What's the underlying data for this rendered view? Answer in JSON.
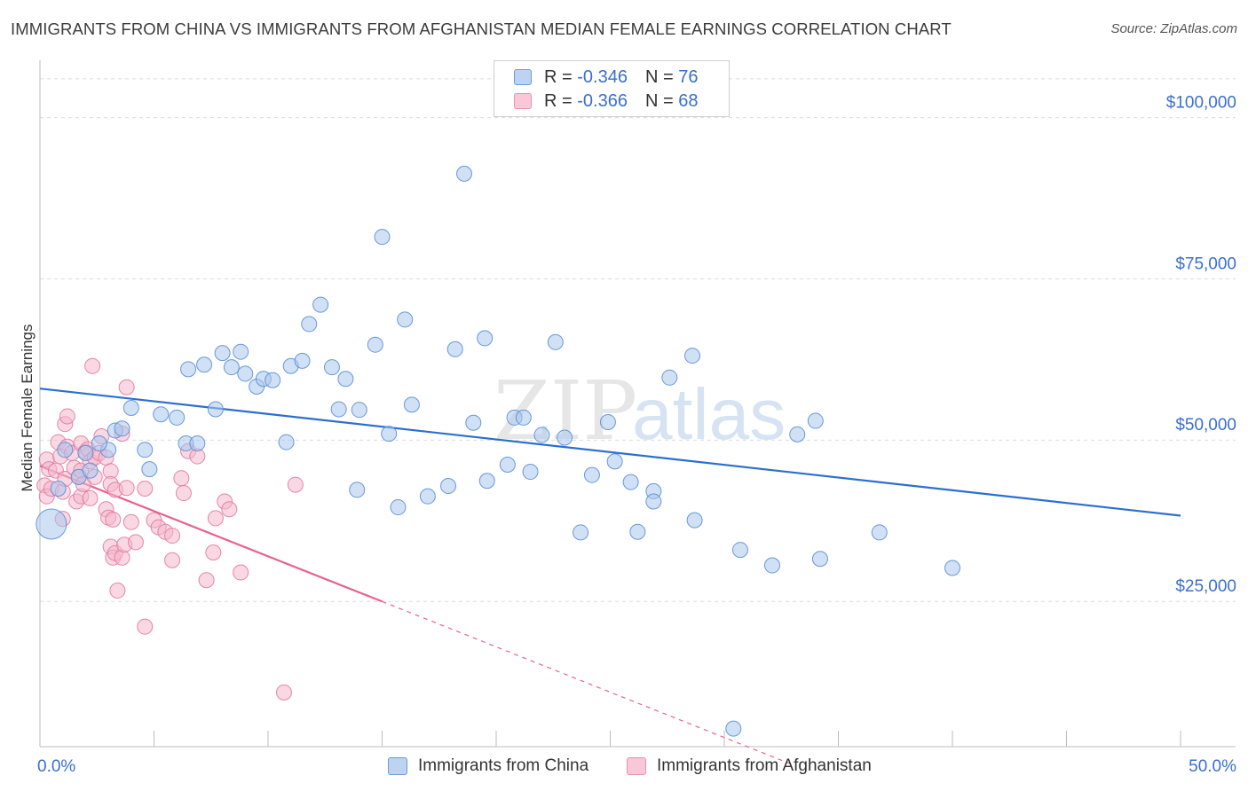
{
  "header": {
    "title": "IMMIGRANTS FROM CHINA VS IMMIGRANTS FROM AFGHANISTAN MEDIAN FEMALE EARNINGS CORRELATION CHART",
    "source": "Source: ZipAtlas.com"
  },
  "legend": {
    "china": {
      "r_label": "R =",
      "r_value": "-0.346",
      "n_label": "N =",
      "n_value": "76"
    },
    "afghanistan": {
      "r_label": "R =",
      "r_value": "-0.366",
      "n_label": "N =",
      "n_value": "68"
    }
  },
  "watermark": {
    "zip": "ZIP",
    "atlas": "atlas"
  },
  "colors": {
    "china_fill": "#a9c6ec",
    "china_stroke": "#5b8fd6",
    "china_line": "#2a6fd0",
    "afgh_fill": "#f4b8cc",
    "afgh_stroke": "#e37aa0",
    "afgh_line": "#e8628f",
    "axis_label": "#3a6fcf",
    "grid": "#dcdcdc"
  },
  "chart_data": {
    "type": "scatter",
    "title": "IMMIGRANTS FROM CHINA VS IMMIGRANTS FROM AFGHANISTAN MEDIAN FEMALE EARNINGS CORRELATION CHART",
    "xlabel": "",
    "ylabel": "Median Female Earnings",
    "xlim": [
      0,
      50
    ],
    "ylim": [
      0,
      105000
    ],
    "x_tick_labels": [
      "0.0%",
      "50.0%"
    ],
    "y_ticks": [
      {
        "value": 25000,
        "label": "$25,000"
      },
      {
        "value": 50000,
        "label": "$50,000"
      },
      {
        "value": 75000,
        "label": "$75,000"
      },
      {
        "value": 100000,
        "label": "$100,000"
      }
    ],
    "series": [
      {
        "name": "Immigrants from China",
        "r": -0.346,
        "n": 76,
        "trend": {
          "x0": 0,
          "y0": 55500,
          "x1": 50,
          "y1": 35800
        },
        "points": [
          [
            0.5,
            34500,
            "big"
          ],
          [
            0.8,
            40000
          ],
          [
            1.7,
            41800
          ],
          [
            2.2,
            42800
          ],
          [
            3.0,
            46000
          ],
          [
            2.0,
            45500
          ],
          [
            2.6,
            47000
          ],
          [
            3.3,
            49000
          ],
          [
            3.6,
            49300
          ],
          [
            4.0,
            52500
          ],
          [
            4.6,
            46000
          ],
          [
            4.8,
            43000
          ],
          [
            5.3,
            51500
          ],
          [
            6.0,
            51000
          ],
          [
            6.4,
            47000
          ],
          [
            6.5,
            58500
          ],
          [
            6.9,
            47000
          ],
          [
            7.2,
            59200
          ],
          [
            7.7,
            52300
          ],
          [
            8.0,
            61000
          ],
          [
            8.4,
            58800
          ],
          [
            8.8,
            61200
          ],
          [
            9.0,
            57800
          ],
          [
            9.5,
            55800
          ],
          [
            9.8,
            57000
          ],
          [
            10.2,
            56800
          ],
          [
            10.8,
            47200
          ],
          [
            11.0,
            59000
          ],
          [
            11.5,
            59800
          ],
          [
            11.8,
            65500
          ],
          [
            12.3,
            68500
          ],
          [
            12.8,
            58800
          ],
          [
            13.1,
            52300
          ],
          [
            13.4,
            57000
          ],
          [
            13.9,
            39800
          ],
          [
            14.0,
            52200
          ],
          [
            14.7,
            62300
          ],
          [
            15.0,
            79000
          ],
          [
            15.3,
            48500
          ],
          [
            15.7,
            37100
          ],
          [
            16.0,
            66200
          ],
          [
            16.3,
            53000
          ],
          [
            17.0,
            38800
          ],
          [
            17.9,
            40400
          ],
          [
            18.2,
            61600
          ],
          [
            18.6,
            88800
          ],
          [
            19.0,
            50200
          ],
          [
            19.5,
            63300
          ],
          [
            19.6,
            41200
          ],
          [
            20.5,
            43700
          ],
          [
            20.8,
            51000
          ],
          [
            21.2,
            51000
          ],
          [
            21.5,
            42600
          ],
          [
            22.0,
            48300
          ],
          [
            22.6,
            62700
          ],
          [
            23.0,
            47900
          ],
          [
            23.7,
            33200
          ],
          [
            24.2,
            42100
          ],
          [
            24.9,
            50300
          ],
          [
            25.2,
            44200
          ],
          [
            25.9,
            41000
          ],
          [
            26.2,
            33300
          ],
          [
            26.9,
            39600
          ],
          [
            26.9,
            38000
          ],
          [
            27.6,
            57200
          ],
          [
            28.6,
            60600
          ],
          [
            28.7,
            35100
          ],
          [
            30.4,
            2800
          ],
          [
            30.7,
            30500
          ],
          [
            32.1,
            28100
          ],
          [
            33.2,
            48400
          ],
          [
            34.0,
            50500
          ],
          [
            34.2,
            29100
          ],
          [
            36.8,
            33200
          ],
          [
            40.0,
            27700
          ],
          [
            1.1,
            46000
          ]
        ]
      },
      {
        "name": "Immigrants from Afghanistan",
        "r": -0.366,
        "n": 68,
        "trend": {
          "x0": 0,
          "y0": 43500,
          "x1": 15,
          "y1": 22500,
          "dash_to_x": 33,
          "dash_to_y": -2800
        },
        "points": [
          [
            0.2,
            40500
          ],
          [
            0.3,
            38800
          ],
          [
            0.3,
            44500
          ],
          [
            0.4,
            43000
          ],
          [
            0.5,
            40000
          ],
          [
            0.7,
            42800
          ],
          [
            0.8,
            47200
          ],
          [
            0.9,
            45000
          ],
          [
            1.0,
            39500
          ],
          [
            1.0,
            35300
          ],
          [
            1.1,
            50000
          ],
          [
            1.1,
            41500
          ],
          [
            1.2,
            46500
          ],
          [
            1.2,
            51200
          ],
          [
            1.4,
            45500
          ],
          [
            1.5,
            43200
          ],
          [
            1.6,
            38000
          ],
          [
            1.7,
            41800
          ],
          [
            1.8,
            42800
          ],
          [
            1.8,
            47000
          ],
          [
            1.8,
            38800
          ],
          [
            1.9,
            40700
          ],
          [
            2.0,
            45700
          ],
          [
            2.1,
            46100
          ],
          [
            2.2,
            44200
          ],
          [
            2.2,
            38500
          ],
          [
            2.3,
            59000
          ],
          [
            2.4,
            44800
          ],
          [
            2.4,
            41800
          ],
          [
            2.6,
            45500
          ],
          [
            2.7,
            48100
          ],
          [
            2.9,
            44800
          ],
          [
            2.9,
            36800
          ],
          [
            3.0,
            35500
          ],
          [
            3.1,
            42700
          ],
          [
            3.1,
            40700
          ],
          [
            3.1,
            31000
          ],
          [
            3.2,
            35200
          ],
          [
            3.2,
            29300
          ],
          [
            3.3,
            30000
          ],
          [
            3.3,
            39800
          ],
          [
            3.4,
            24200
          ],
          [
            3.6,
            48500
          ],
          [
            3.6,
            29300
          ],
          [
            3.7,
            31300
          ],
          [
            3.8,
            55700
          ],
          [
            3.8,
            40100
          ],
          [
            4.0,
            34800
          ],
          [
            4.2,
            31700
          ],
          [
            4.6,
            40000
          ],
          [
            4.6,
            18600
          ],
          [
            5.0,
            35100
          ],
          [
            5.2,
            34000
          ],
          [
            5.5,
            33300
          ],
          [
            5.8,
            32700
          ],
          [
            5.8,
            28900
          ],
          [
            6.2,
            41600
          ],
          [
            6.3,
            39300
          ],
          [
            6.5,
            45800
          ],
          [
            6.9,
            45000
          ],
          [
            7.3,
            25800
          ],
          [
            7.6,
            30100
          ],
          [
            7.7,
            35400
          ],
          [
            8.1,
            38000
          ],
          [
            8.3,
            36800
          ],
          [
            8.8,
            27000
          ],
          [
            10.7,
            8400
          ],
          [
            11.2,
            40600
          ]
        ]
      }
    ]
  }
}
